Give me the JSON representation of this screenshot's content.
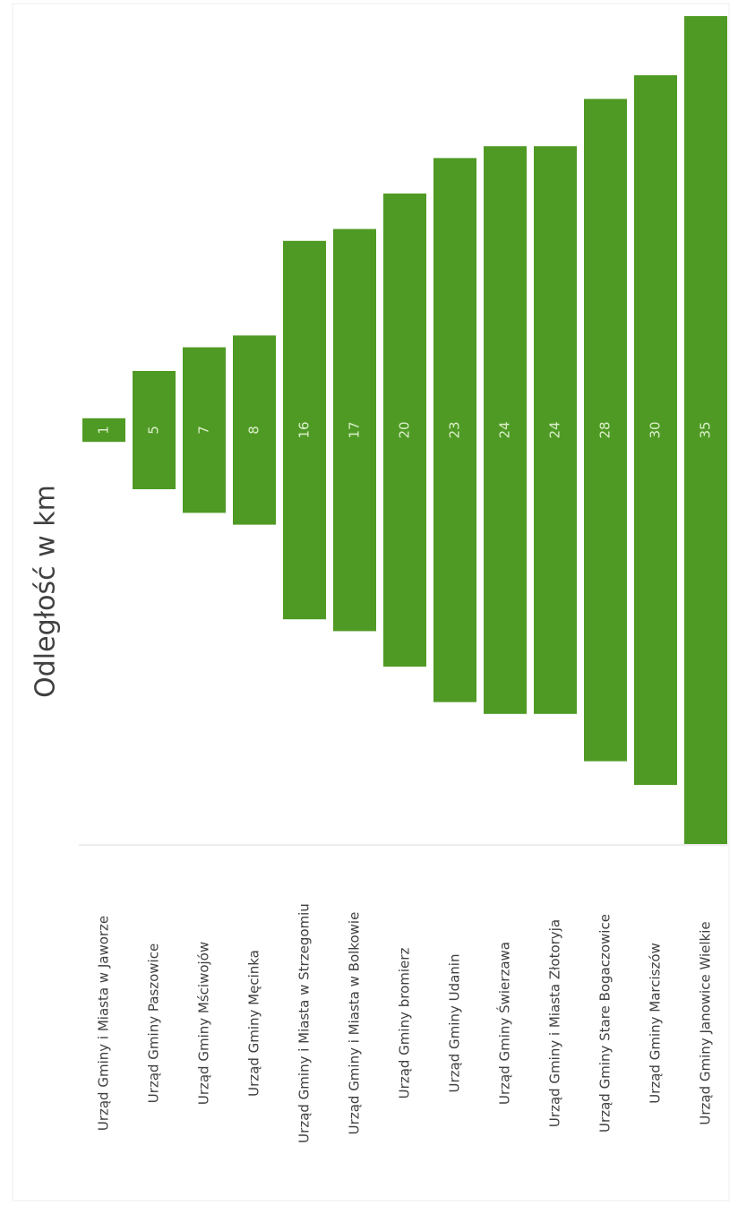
{
  "chart_data": {
    "type": "funnel",
    "title": "Odległość w km",
    "categories": [
      "Urząd Gminy i Miasta w Jaworze",
      "Urząd Gminy Paszowice",
      "Urząd Gminy Mściwojów",
      "Urząd Gminy Męcinka",
      "Urząd Gminy i Miasta w Strzegomiu",
      "Urząd Gminy i Miasta w Bolkowie",
      "Urząd Gminy bromierz",
      "Urząd Gminy Udanin",
      "Urząd Gminy Świerzawa",
      "Urząd Gminy i Miasta Złotoryja",
      "Urząd Gminy Stare Bogaczowice",
      "Urząd Gminy Marciszów",
      "Urząd Gminy Janowice Wielkie"
    ],
    "values": [
      1,
      5,
      7,
      8,
      16,
      17,
      20,
      23,
      24,
      24,
      28,
      30,
      35
    ],
    "color": "#4f9a24"
  }
}
